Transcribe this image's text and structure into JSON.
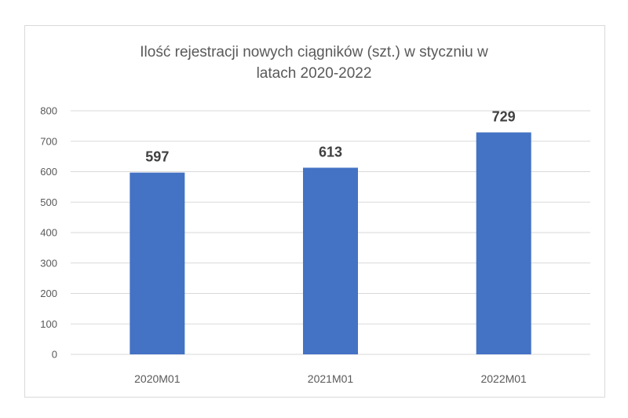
{
  "chart_data": {
    "type": "bar",
    "title_lines": [
      "Ilość rejestracji nowych ciągników (szt.) w styczniu w",
      "latach 2020-2022"
    ],
    "categories": [
      "2020M01",
      "2021M01",
      "2022M01"
    ],
    "values": [
      597,
      613,
      729
    ],
    "data_labels": [
      "597",
      "613",
      "729"
    ],
    "y_ticks": [
      0,
      100,
      200,
      300,
      400,
      500,
      600,
      700,
      800
    ],
    "ylim": [
      0,
      800
    ],
    "xlabel": "",
    "ylabel": "",
    "grid": true,
    "legend": "none",
    "colors": {
      "bar": "#4472c4",
      "grid": "#d9d9d9",
      "text": "#595959",
      "data_label": "#404040"
    }
  }
}
